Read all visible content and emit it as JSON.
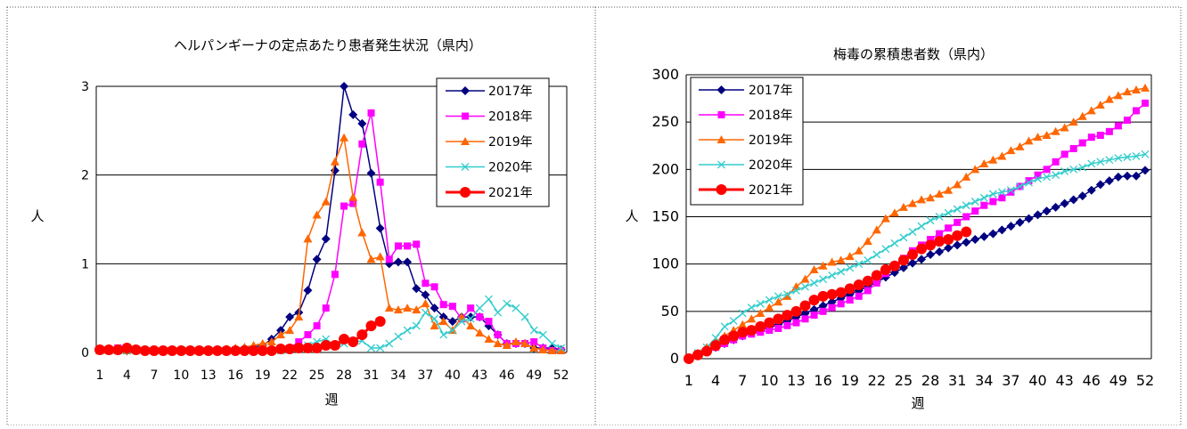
{
  "chart_data": [
    {
      "type": "line",
      "title": "ヘルパンギーナの定点あたり患者発生状況（県内）",
      "xlabel": "週",
      "ylabel": "人",
      "ylim": [
        0,
        3
      ],
      "yticks": [
        "0",
        "1",
        "2",
        "3"
      ],
      "xticks": [
        "1",
        "4",
        "7",
        "10",
        "13",
        "16",
        "19",
        "22",
        "25",
        "28",
        "31",
        "34",
        "37",
        "40",
        "43",
        "46",
        "49",
        "52"
      ],
      "grid": "horizontal",
      "legend": "top-right",
      "series": [
        {
          "name": "2017年",
          "color": "#000080",
          "marker": "diamond",
          "line_width": 1.5,
          "values": [
            0.02,
            0.02,
            0.02,
            0.02,
            0.02,
            0.02,
            0.02,
            0.02,
            0.02,
            0.02,
            0.02,
            0.03,
            0.02,
            0.03,
            0.03,
            0.04,
            0.05,
            0.06,
            0.08,
            0.15,
            0.25,
            0.4,
            0.45,
            0.7,
            1.05,
            1.28,
            2.05,
            3.0,
            2.68,
            2.58,
            2.02,
            1.4,
            1.0,
            1.02,
            1.02,
            0.72,
            0.65,
            0.5,
            0.4,
            0.35,
            0.4,
            0.4,
            0.4,
            0.3,
            0.2,
            0.1,
            0.1,
            0.1,
            0.05,
            0.05,
            0.05,
            0.03
          ]
        },
        {
          "name": "2018年",
          "color": "#ff00ff",
          "marker": "square",
          "line_width": 1.5,
          "values": [
            0.02,
            0.02,
            0.05,
            0.04,
            0.02,
            0.02,
            0.02,
            0.02,
            0.02,
            0.02,
            0.02,
            0.02,
            0.02,
            0.02,
            0.02,
            0.02,
            0.02,
            0.02,
            0.02,
            0.02,
            0.04,
            0.05,
            0.12,
            0.2,
            0.3,
            0.5,
            0.88,
            1.65,
            1.68,
            2.35,
            2.7,
            1.92,
            1.05,
            1.2,
            1.2,
            1.22,
            0.78,
            0.74,
            0.54,
            0.52,
            0.38,
            0.5,
            0.4,
            0.35,
            0.2,
            0.1,
            0.1,
            0.1,
            0.12,
            0.05,
            0.02,
            0.02
          ]
        },
        {
          "name": "2019年",
          "color": "#ff6600",
          "marker": "triangle",
          "line_width": 1.5,
          "values": [
            0.02,
            0.02,
            0.02,
            0.02,
            0.03,
            0.02,
            0.02,
            0.03,
            0.02,
            0.02,
            0.02,
            0.02,
            0.03,
            0.03,
            0.04,
            0.05,
            0.06,
            0.08,
            0.1,
            0.12,
            0.2,
            0.25,
            0.4,
            1.28,
            1.55,
            1.7,
            2.15,
            2.42,
            1.75,
            1.35,
            1.05,
            1.08,
            0.5,
            0.48,
            0.5,
            0.48,
            0.55,
            0.3,
            0.35,
            0.25,
            0.4,
            0.3,
            0.22,
            0.15,
            0.1,
            0.08,
            0.12,
            0.1,
            0.05,
            0.03,
            0.02,
            0.02
          ]
        },
        {
          "name": "2020年",
          "color": "#33cccc",
          "marker": "x",
          "line_width": 1.5,
          "values": [
            0.02,
            0.02,
            0.02,
            0.02,
            0.02,
            0.02,
            0.02,
            0.02,
            0.02,
            0.02,
            0.02,
            0.02,
            0.02,
            0.02,
            0.02,
            0.02,
            0.02,
            0.02,
            0.02,
            0.02,
            0.02,
            0.03,
            0.05,
            0.08,
            0.12,
            0.15,
            0.08,
            0.1,
            0.12,
            0.13,
            0.05,
            0.05,
            0.1,
            0.18,
            0.25,
            0.3,
            0.45,
            0.38,
            0.2,
            0.25,
            0.35,
            0.38,
            0.5,
            0.6,
            0.45,
            0.55,
            0.5,
            0.4,
            0.25,
            0.2,
            0.1,
            0.05
          ]
        },
        {
          "name": "2021年",
          "color": "#ff0000",
          "marker": "circle",
          "line_width": 3,
          "values": [
            0.03,
            0.03,
            0.03,
            0.05,
            0.03,
            0.02,
            0.02,
            0.02,
            0.02,
            0.02,
            0.02,
            0.02,
            0.02,
            0.02,
            0.02,
            0.02,
            0.02,
            0.02,
            0.02,
            0.02,
            0.04,
            0.04,
            0.05,
            0.05,
            0.05,
            0.08,
            0.08,
            0.15,
            0.12,
            0.2,
            0.3,
            0.35
          ]
        }
      ]
    },
    {
      "type": "line",
      "title": "梅毒の累積患者数（県内）",
      "xlabel": "週",
      "ylabel": "人",
      "ylim": [
        0,
        300
      ],
      "yticks": [
        "0",
        "50",
        "100",
        "150",
        "200",
        "250",
        "300"
      ],
      "xticks": [
        "1",
        "4",
        "7",
        "10",
        "13",
        "16",
        "19",
        "22",
        "25",
        "28",
        "31",
        "34",
        "37",
        "40",
        "43",
        "46",
        "49",
        "52"
      ],
      "grid": "horizontal",
      "legend": "top-left",
      "series": [
        {
          "name": "2017年",
          "color": "#000080",
          "marker": "diamond",
          "line_width": 1.5,
          "values": [
            0,
            4,
            8,
            12,
            16,
            20,
            24,
            27,
            30,
            33,
            36,
            40,
            44,
            48,
            52,
            56,
            60,
            64,
            68,
            72,
            76,
            81,
            86,
            91,
            96,
            101,
            105,
            110,
            113,
            117,
            120,
            123,
            126,
            129,
            132,
            136,
            140,
            144,
            148,
            152,
            156,
            160,
            164,
            168,
            172,
            178,
            184,
            188,
            192,
            193,
            193,
            199
          ]
        },
        {
          "name": "2018年",
          "color": "#ff00ff",
          "marker": "square",
          "line_width": 1.5,
          "values": [
            0,
            4,
            8,
            12,
            16,
            20,
            24,
            26,
            28,
            30,
            32,
            35,
            38,
            42,
            46,
            50,
            54,
            58,
            62,
            66,
            72,
            80,
            90,
            98,
            106,
            114,
            120,
            126,
            132,
            138,
            144,
            150,
            156,
            162,
            166,
            170,
            176,
            182,
            188,
            194,
            200,
            208,
            216,
            222,
            228,
            234,
            236,
            240,
            246,
            252,
            262,
            270
          ]
        },
        {
          "name": "2019年",
          "color": "#ff6600",
          "marker": "triangle",
          "line_width": 1.5,
          "values": [
            0,
            6,
            12,
            18,
            24,
            30,
            36,
            42,
            48,
            54,
            60,
            66,
            76,
            84,
            94,
            98,
            102,
            104,
            108,
            114,
            124,
            136,
            148,
            154,
            160,
            164,
            168,
            170,
            174,
            178,
            184,
            192,
            200,
            206,
            210,
            214,
            220,
            224,
            230,
            234,
            236,
            240,
            244,
            250,
            256,
            262,
            268,
            274,
            278,
            282,
            284,
            286
          ]
        },
        {
          "name": "2020年",
          "color": "#33cccc",
          "marker": "x",
          "line_width": 1.5,
          "values": [
            0,
            6,
            12,
            22,
            34,
            40,
            48,
            54,
            58,
            62,
            66,
            68,
            72,
            76,
            80,
            84,
            88,
            92,
            96,
            100,
            104,
            110,
            116,
            122,
            128,
            134,
            140,
            146,
            150,
            154,
            158,
            162,
            166,
            170,
            174,
            176,
            178,
            182,
            186,
            190,
            192,
            194,
            198,
            200,
            202,
            206,
            208,
            210,
            212,
            213,
            214,
            216
          ]
        },
        {
          "name": "2021年",
          "color": "#ff0000",
          "marker": "circle",
          "line_width": 3,
          "values": [
            0,
            4,
            8,
            14,
            20,
            24,
            28,
            30,
            34,
            38,
            42,
            46,
            50,
            56,
            62,
            66,
            68,
            70,
            74,
            78,
            82,
            88,
            94,
            98,
            104,
            110,
            116,
            120,
            124,
            126,
            130,
            134
          ]
        }
      ]
    }
  ]
}
